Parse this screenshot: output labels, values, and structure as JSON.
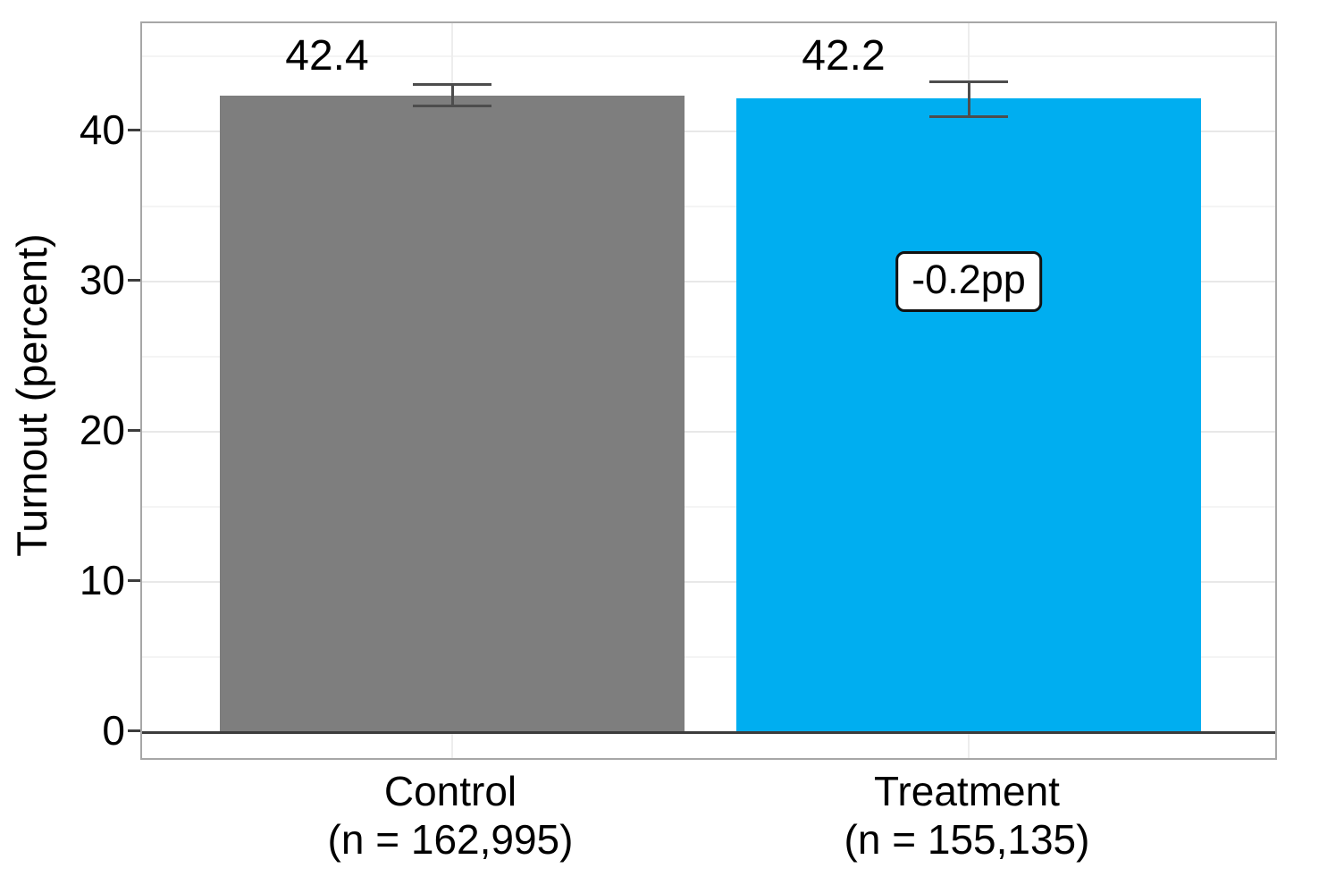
{
  "chart_data": {
    "type": "bar",
    "title": "",
    "xlabel": "",
    "ylabel": "Turnout (percent)",
    "ylim": [
      0,
      47
    ],
    "yticks": [
      0,
      10,
      20,
      30,
      40
    ],
    "yticks_minor": [
      5,
      15,
      25,
      35,
      45
    ],
    "grid": true,
    "legend": false,
    "categories": [
      "Control",
      "Treatment"
    ],
    "series": [
      {
        "name": "Control",
        "n_label": "(n = 162,995)",
        "value": 42.4,
        "value_label": "42.4",
        "ci_low": 41.7,
        "ci_high": 43.1,
        "color": "#7e7e7e"
      },
      {
        "name": "Treatment",
        "n_label": "(n = 155,135)",
        "value": 42.2,
        "value_label": "42.2",
        "ci_low": 41.0,
        "ci_high": 43.3,
        "color": "#00aef0"
      }
    ],
    "annotation": {
      "text": "-0.2pp",
      "series_index": 1,
      "y": 30
    },
    "value_label_y": 45
  },
  "colors": {
    "bar_control": "#7e7e7e",
    "bar_treatment": "#00aef0",
    "error_bar": "#4d4d4d",
    "zero_line": "#3c3c3c",
    "panel_border": "#a7a7a7",
    "grid_major": "#e8e8e8",
    "grid_minor": "#f4f4f4",
    "text": "#000000",
    "annotation_bg": "#ffffff",
    "annotation_border": "#111111"
  }
}
